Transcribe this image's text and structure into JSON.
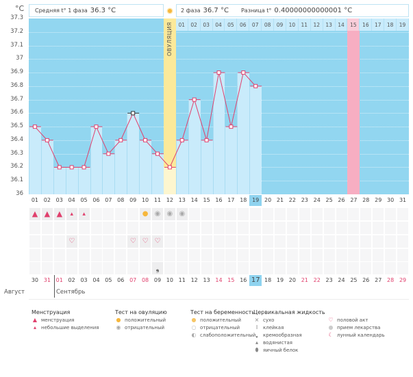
{
  "chart_data": {
    "type": "line",
    "title": "",
    "ylabel": "°C",
    "ylim": [
      36.0,
      37.3
    ],
    "yticks": [
      "37.3",
      "37.2",
      "37.1",
      "37",
      "36.9",
      "36.8",
      "36.7",
      "36.6",
      "36.5",
      "36.4",
      "36.3",
      "36.2",
      "36.1",
      "36"
    ],
    "cycle_days": [
      "01",
      "02",
      "03",
      "04",
      "05",
      "06",
      "07",
      "08",
      "09",
      "10",
      "11",
      "12",
      "13",
      "14",
      "15",
      "16",
      "17",
      "18",
      "19",
      "20",
      "21",
      "22",
      "23",
      "24",
      "25",
      "26",
      "27",
      "28",
      "29",
      "30",
      "31"
    ],
    "series": [
      {
        "name": "Базальная температура",
        "color": "#e0406d",
        "values": [
          36.5,
          36.4,
          36.2,
          36.2,
          36.2,
          36.5,
          36.3,
          36.4,
          36.6,
          36.4,
          36.3,
          36.2,
          36.4,
          36.7,
          36.4,
          36.9,
          36.5,
          36.9,
          36.8
        ]
      }
    ],
    "highlighted_point_day": 9,
    "ovulation_day": 12,
    "ovulation_label": "ОВУЛЯЦИЯ",
    "phase2_days": [
      "01",
      "02",
      "03",
      "04",
      "05",
      "06",
      "07",
      "08",
      "09",
      "10",
      "11",
      "12",
      "13",
      "14",
      "15",
      "16",
      "17",
      "18",
      "19"
    ],
    "phase2_pink_day": "15",
    "pink_cycle_day": 27,
    "current_cycle_day": "19",
    "grid": true
  },
  "header": {
    "phase1_label": "Средняя t° 1 фаза",
    "phase1_value": "36.3 °C",
    "phase2_label": "2 фаза",
    "phase2_value": "36.7 °C",
    "diff_label": "Разница t°",
    "diff_value": "0.40000000000001 °C"
  },
  "colors": {
    "plot_bg": "#92d6f0",
    "bar": "#c9ebfb",
    "line": "#e0406d",
    "ovulation": "#fbe99a",
    "pink_day": "#f7aec2",
    "weekend_date": "#e0406d"
  },
  "markers": {
    "menstruation": [
      1,
      2,
      3
    ],
    "spotting": [
      4,
      5
    ],
    "ovulation_test_positive": [
      10
    ],
    "ovulation_test_negative": [
      11,
      12,
      13
    ],
    "intercourse": [
      4,
      9,
      10,
      11
    ],
    "cervical_creamy": [
      11
    ]
  },
  "calendar": {
    "dates": [
      {
        "d": "30",
        "red": false
      },
      {
        "d": "31",
        "red": true
      },
      {
        "d": "01",
        "red": true
      },
      {
        "d": "02",
        "red": false
      },
      {
        "d": "03",
        "red": false
      },
      {
        "d": "04",
        "red": false
      },
      {
        "d": "05",
        "red": false
      },
      {
        "d": "06",
        "red": false
      },
      {
        "d": "07",
        "red": true
      },
      {
        "d": "08",
        "red": true
      },
      {
        "d": "09",
        "red": false
      },
      {
        "d": "10",
        "red": false
      },
      {
        "d": "11",
        "red": false
      },
      {
        "d": "12",
        "red": false
      },
      {
        "d": "13",
        "red": false
      },
      {
        "d": "14",
        "red": true
      },
      {
        "d": "15",
        "red": true
      },
      {
        "d": "16",
        "red": false
      },
      {
        "d": "17",
        "red": false,
        "today": true
      },
      {
        "d": "18",
        "red": false
      },
      {
        "d": "19",
        "red": false
      },
      {
        "d": "20",
        "red": false
      },
      {
        "d": "21",
        "red": true
      },
      {
        "d": "22",
        "red": true
      },
      {
        "d": "23",
        "red": false
      },
      {
        "d": "24",
        "red": false
      },
      {
        "d": "25",
        "red": false
      },
      {
        "d": "26",
        "red": false
      },
      {
        "d": "27",
        "red": false
      },
      {
        "d": "28",
        "red": true
      },
      {
        "d": "29",
        "red": true
      }
    ],
    "month_prev": "Август",
    "month_next": "Сентябрь"
  },
  "legend": {
    "groups": [
      {
        "title": "Менструация",
        "items": [
          {
            "icon": "menstruation-icon",
            "glyph": "▲",
            "color": "#e0406d",
            "label": "менструация"
          },
          {
            "icon": "spotting-icon",
            "glyph": "▴",
            "color": "#e0406d",
            "label": "небольшие выделения"
          }
        ]
      },
      {
        "title": "Тест на овуляцию",
        "items": [
          {
            "icon": "ovulation-positive-icon",
            "glyph": "●",
            "color": "#f6b73c",
            "label": "положительный"
          },
          {
            "icon": "ovulation-negative-icon",
            "glyph": "◉",
            "color": "#aaaaaa",
            "label": "отрицательный"
          }
        ]
      },
      {
        "title": "Тест на беременность",
        "items": [
          {
            "icon": "pregnancy-positive-icon",
            "glyph": "●",
            "color": "#f6c667",
            "label": "положительный"
          },
          {
            "icon": "pregnancy-negative-icon",
            "glyph": "○",
            "color": "#bbbbbb",
            "label": "отрицательный"
          },
          {
            "icon": "pregnancy-weak-icon",
            "glyph": "◐",
            "color": "#aaaaaa",
            "label": "слабоположительный"
          }
        ]
      },
      {
        "title": "Цервикальная жидкость",
        "items": [
          {
            "icon": "dry-icon",
            "glyph": "×",
            "color": "#888888",
            "label": "сухо"
          },
          {
            "icon": "sticky-icon",
            "glyph": "Ⅰ",
            "color": "#888888",
            "label": "клейкая"
          },
          {
            "icon": "creamy-icon",
            "glyph": "❟",
            "color": "#777777",
            "label": "кремообразная"
          },
          {
            "icon": "watery-icon",
            "glyph": "▴",
            "color": "#888888",
            "label": "водянистая"
          },
          {
            "icon": "eggwhite-icon",
            "glyph": "⬮",
            "color": "#888888",
            "label": "яичный белок"
          }
        ]
      },
      {
        "title": "",
        "items": [
          {
            "icon": "intercourse-icon",
            "glyph": "♡",
            "color": "#e0406d",
            "label": "половой акт"
          },
          {
            "icon": "medication-icon",
            "glyph": "●",
            "color": "#cccccc",
            "label": "прием лекарства"
          },
          {
            "icon": "lunar-calendar-icon",
            "glyph": "☾",
            "color": "#e0406d",
            "label": "лунный календарь"
          }
        ]
      }
    ]
  }
}
